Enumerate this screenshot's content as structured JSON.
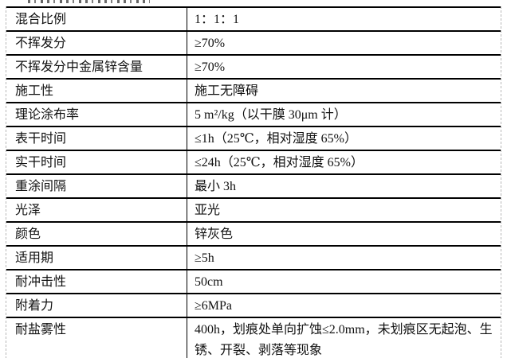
{
  "page": {
    "background": "#ffffff",
    "text_color": "#111111",
    "grid_line_color": "#000000",
    "outer_border_color": "#b8b8b8"
  },
  "table": {
    "rows": [
      {
        "label": "混合比例",
        "value": "1：1：1"
      },
      {
        "label": "不挥发分",
        "value": "≥70%"
      },
      {
        "label": "不挥发分中金属锌含量",
        "value": "≥70%"
      },
      {
        "label": "施工性",
        "value": "施工无障碍"
      },
      {
        "label": "理论涂布率",
        "value": "5 m²/kg（以干膜 30μm 计）"
      },
      {
        "label": "表干时间",
        "value": "≤1h（25℃，相对湿度 65%）"
      },
      {
        "label": "实干时间",
        "value": "≤24h（25℃，相对湿度 65%）"
      },
      {
        "label": "重涂间隔",
        "value": "最小 3h"
      },
      {
        "label": "光泽",
        "value": "亚光"
      },
      {
        "label": "颜色",
        "value": "锌灰色"
      },
      {
        "label": "适用期",
        "value": "≥5h"
      },
      {
        "label": "耐冲击性",
        "value": "50cm"
      },
      {
        "label": "附着力",
        "value": "≥6MPa"
      },
      {
        "label": "耐盐雾性",
        "value": "400h，划痕处单向扩蚀≤2.0mm，未划痕区无起泡、生锈、开裂、剥落等现象"
      }
    ]
  }
}
